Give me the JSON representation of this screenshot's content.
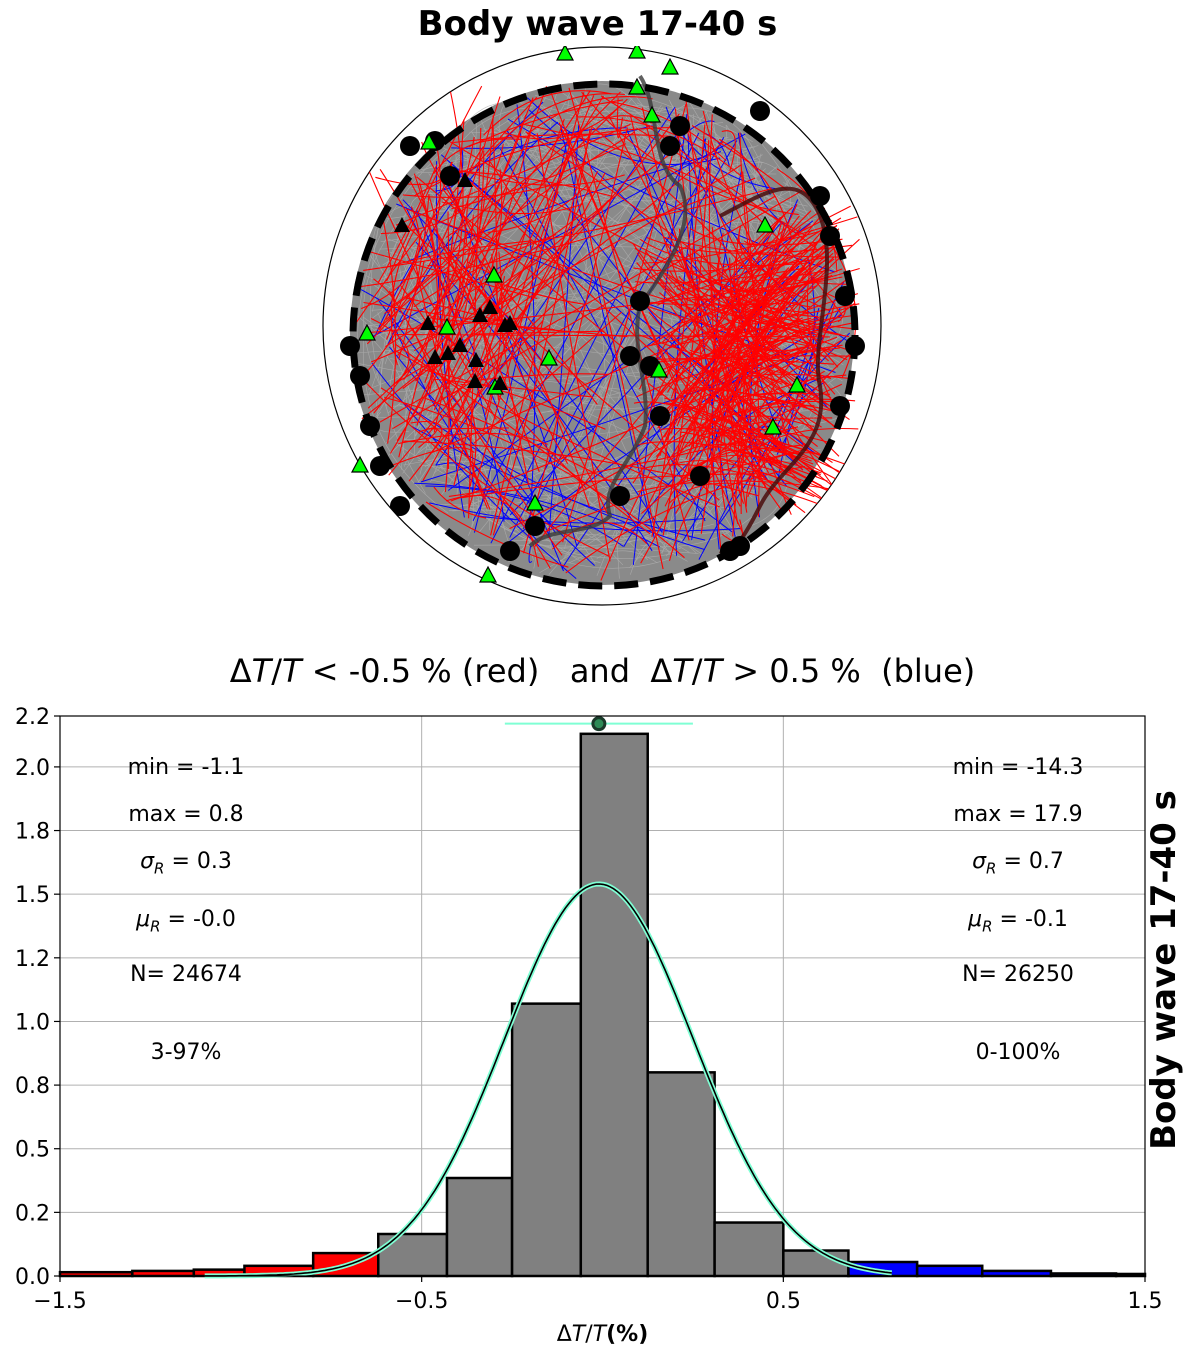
{
  "map": {
    "title": "Body wave 17-40 s",
    "colors": {
      "red_paths": "#ff0000",
      "blue_paths": "#0000ff",
      "gray_paths": "#808080",
      "stations": "#00ff00",
      "events": "#000000"
    }
  },
  "histogram": {
    "title_lt": "< -0.5 % (red)   and  ",
    "title_gt": "> 0.5 %  (blue)",
    "side_title": "Body wave 17-40 s",
    "xlabel_unit": "(%)",
    "left_stats": {
      "min": "min = -1.1",
      "max": "max = 0.8",
      "sigma": "= 0.3",
      "mu": "= -0.0",
      "n": "N= 24674",
      "range": "3-97%"
    },
    "right_stats": {
      "min": "min = -14.3",
      "max": "max = 17.9",
      "sigma": "= 0.7",
      "mu": "= -0.1",
      "n": "N= 26250",
      "range": "0-100%"
    }
  },
  "chart_data": {
    "type": "bar",
    "xlim": [
      -1.5,
      1.5
    ],
    "ylim": [
      0,
      2.2
    ],
    "xticks": [
      -1.5,
      -0.5,
      0.5,
      1.5
    ],
    "xtick_labels": [
      "−1.5",
      "−0.5",
      "0.5",
      "1.5"
    ],
    "yticks": [
      0.0,
      0.25,
      0.5,
      0.75,
      1.0,
      1.25,
      1.5,
      1.75,
      2.0,
      2.2
    ],
    "ytick_labels": [
      "0.0",
      "0.2",
      "0.5",
      "0.8",
      "1.0",
      "1.2",
      "1.5",
      "1.8",
      "2.0",
      "2.2"
    ],
    "grid": true,
    "bins": [
      {
        "x0": -1.5,
        "x1": -1.3,
        "v": 0.015,
        "c": "#ff0000"
      },
      {
        "x0": -1.3,
        "x1": -1.13,
        "v": 0.02,
        "c": "#ff0000"
      },
      {
        "x0": -1.13,
        "x1": -0.99,
        "v": 0.025,
        "c": "#ff0000"
      },
      {
        "x0": -0.99,
        "x1": -0.8,
        "v": 0.04,
        "c": "#ff0000"
      },
      {
        "x0": -0.8,
        "x1": -0.62,
        "v": 0.09,
        "c": "#ff0000"
      },
      {
        "x0": -0.62,
        "x1": -0.43,
        "v": 0.165,
        "c": "#808080"
      },
      {
        "x0": -0.43,
        "x1": -0.25,
        "v": 0.385,
        "c": "#808080"
      },
      {
        "x0": -0.25,
        "x1": -0.06,
        "v": 1.07,
        "c": "#808080"
      },
      {
        "x0": -0.06,
        "x1": 0.125,
        "v": 2.13,
        "c": "#808080"
      },
      {
        "x0": 0.125,
        "x1": 0.31,
        "v": 0.8,
        "c": "#808080"
      },
      {
        "x0": 0.31,
        "x1": 0.5,
        "v": 0.21,
        "c": "#808080"
      },
      {
        "x0": 0.5,
        "x1": 0.68,
        "v": 0.1,
        "c": "#808080"
      },
      {
        "x0": 0.68,
        "x1": 0.87,
        "v": 0.055,
        "c": "#0000ff"
      },
      {
        "x0": 0.87,
        "x1": 1.05,
        "v": 0.04,
        "c": "#0000ff"
      },
      {
        "x0": 1.05,
        "x1": 1.24,
        "v": 0.02,
        "c": "#0000ff"
      },
      {
        "x0": 1.24,
        "x1": 1.42,
        "v": 0.01,
        "c": "#0000ff"
      },
      {
        "x0": 1.42,
        "x1": 1.5,
        "v": 0.008,
        "c": "#0000ff"
      }
    ],
    "gaussian": {
      "mu": -0.01,
      "sigma": 0.26,
      "peak": 1.54,
      "x_range": [
        -1.1,
        0.8
      ],
      "color": "#7fffd4"
    },
    "mean_marker": {
      "x": -0.01,
      "y": 2.17,
      "err_low": -0.27,
      "err_high": 0.25
    }
  }
}
